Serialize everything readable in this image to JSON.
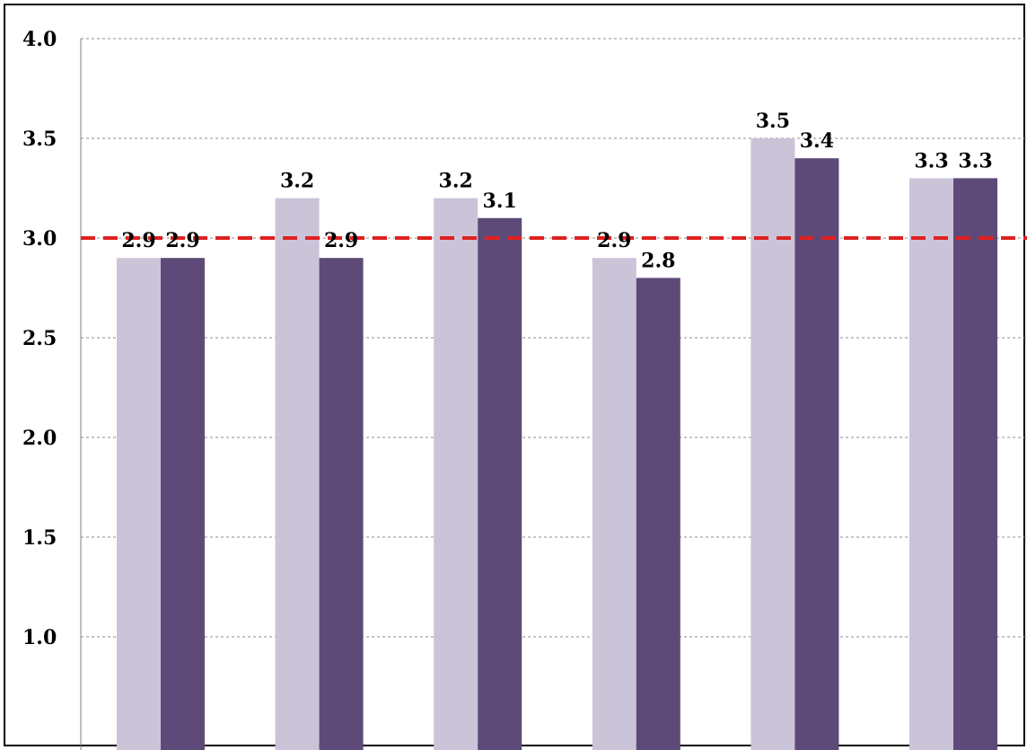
{
  "chart_data": {
    "type": "bar",
    "categories": [
      "",
      "",
      "",
      "",
      "",
      ""
    ],
    "series": [
      {
        "color": "#cbc3d8",
        "values": [
          2.9,
          3.2,
          3.2,
          2.9,
          3.5,
          3.3
        ]
      },
      {
        "color": "#5e4a78",
        "values": [
          2.9,
          2.9,
          3.1,
          2.8,
          3.4,
          3.3
        ]
      }
    ],
    "data_labels": {
      "s0": [
        "2.9",
        "3.2",
        "3.2",
        "2.9",
        "3.5",
        "3.3"
      ],
      "s1": [
        "2.9",
        "2.9",
        "3.1",
        "2.8",
        "3.4",
        "3.3"
      ]
    },
    "y_ticks": [
      "1.0",
      "1.5",
      "2.0",
      "2.5",
      "3.0",
      "3.5",
      "4.0"
    ],
    "ylim": [
      1.0,
      4.0
    ],
    "grid": true,
    "reference_line": {
      "value": 3.0,
      "color": "#e02020",
      "style": "dashed"
    },
    "title": "",
    "xlabel": "",
    "ylabel": ""
  }
}
